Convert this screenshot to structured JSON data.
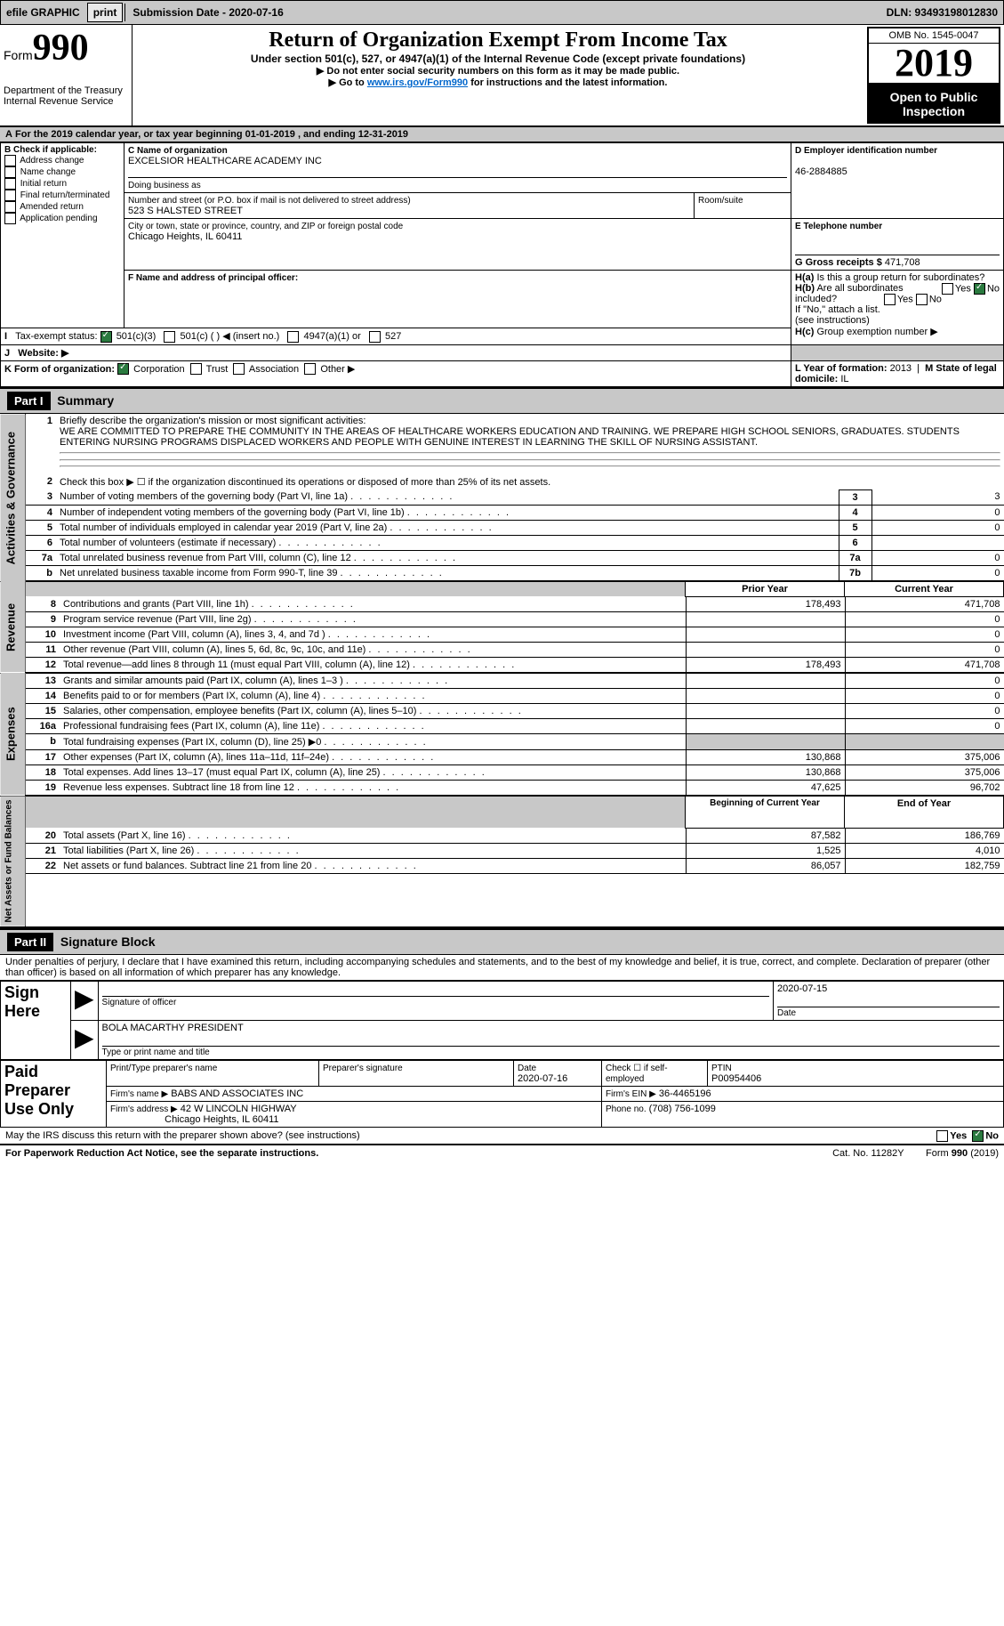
{
  "topbar": {
    "efile": "efile GRAPHIC",
    "print": "print",
    "submission": "Submission Date - 2020-07-16",
    "dln": "DLN: 93493198012830"
  },
  "header": {
    "form_prefix": "Form",
    "form_no": "990",
    "title": "Return of Organization Exempt From Income Tax",
    "subtitle": "Under section 501(c), 527, or 4947(a)(1) of the Internal Revenue Code (except private foundations)",
    "note1": "▶ Do not enter social security numbers on this form as it may be made public.",
    "note2_pre": "▶ Go to ",
    "note2_link": "www.irs.gov/Form990",
    "note2_post": " for instructions and the latest information.",
    "dept": "Department of the Treasury\nInternal Revenue Service",
    "omb": "OMB No. 1545-0047",
    "year": "2019",
    "open": "Open to Public Inspection"
  },
  "sectionA": "For the 2019 calendar year, or tax year beginning 01-01-2019   , and ending 12-31-2019",
  "boxB": {
    "title": "B Check if applicable:",
    "items": [
      "Address change",
      "Name change",
      "Initial return",
      "Final return/terminated",
      "Amended return",
      "Application pending"
    ]
  },
  "boxC": {
    "label": "C Name of organization",
    "name": "EXCELSIOR HEALTHCARE ACADEMY INC",
    "dba": "Doing business as",
    "street_label": "Number and street (or P.O. box if mail is not delivered to street address)",
    "street": "523 S HALSTED STREET",
    "room": "Room/suite",
    "city_label": "City or town, state or province, country, and ZIP or foreign postal code",
    "city": "Chicago Heights, IL  60411"
  },
  "boxD": {
    "label": "D Employer identification number",
    "ein": "46-2884885"
  },
  "boxE": {
    "label": "E Telephone number"
  },
  "boxF": {
    "label": "F  Name and address of principal officer:"
  },
  "boxG": {
    "label": "G Gross receipts $",
    "val": "471,708"
  },
  "boxH": {
    "a": "Is this a group return for subordinates?",
    "a_no": "No",
    "b": "Are all subordinates included?",
    "c": "Group exemption number ▶",
    "note": "If \"No,\" attach a list. (see instructions)"
  },
  "boxI": {
    "label": "Tax-exempt status:",
    "opts": [
      "501(c)(3)",
      "501(c) (  ) ◀ (insert no.)",
      "4947(a)(1) or",
      "527"
    ]
  },
  "boxJ": {
    "label": "Website: ▶"
  },
  "boxK": {
    "label": "K Form of organization:",
    "opts": [
      "Corporation",
      "Trust",
      "Association",
      "Other ▶"
    ]
  },
  "boxL": {
    "label": "L Year of formation:",
    "val": "2013"
  },
  "boxM": {
    "label": "M State of legal domicile:",
    "val": "IL"
  },
  "part1": {
    "hdr": "Part I",
    "title": "Summary"
  },
  "gov": {
    "label": "Activities & Governance",
    "l1": "Briefly describe the organization's mission or most significant activities:",
    "mission": "WE ARE COMMITTED TO PREPARE THE COMMUNITY IN THE AREAS OF HEALTHCARE WORKERS EDUCATION AND TRAINING. WE PREPARE HIGH SCHOOL SENIORS, GRADUATES. STUDENTS ENTERING NURSING PROGRAMS DISPLACED WORKERS AND PEOPLE WITH GENUINE INTEREST IN LEARNING THE SKILL OF NURSING ASSISTANT.",
    "l2": "Check this box ▶ ☐  if the organization discontinued its operations or disposed of more than 25% of its net assets.",
    "rows": [
      {
        "n": "3",
        "t": "Number of voting members of the governing body (Part VI, line 1a)",
        "b": "3",
        "v": "3"
      },
      {
        "n": "4",
        "t": "Number of independent voting members of the governing body (Part VI, line 1b)",
        "b": "4",
        "v": "0"
      },
      {
        "n": "5",
        "t": "Total number of individuals employed in calendar year 2019 (Part V, line 2a)",
        "b": "5",
        "v": "0"
      },
      {
        "n": "6",
        "t": "Total number of volunteers (estimate if necessary)",
        "b": "6",
        "v": ""
      },
      {
        "n": "7a",
        "t": "Total unrelated business revenue from Part VIII, column (C), line 12",
        "b": "7a",
        "v": "0"
      },
      {
        "n": "b",
        "t": "Net unrelated business taxable income from Form 990-T, line 39",
        "b": "7b",
        "v": "0"
      }
    ]
  },
  "rev": {
    "label": "Revenue",
    "hdr_prior": "Prior Year",
    "hdr_curr": "Current Year",
    "rows": [
      {
        "n": "8",
        "t": "Contributions and grants (Part VIII, line 1h)",
        "p": "178,493",
        "c": "471,708"
      },
      {
        "n": "9",
        "t": "Program service revenue (Part VIII, line 2g)",
        "p": "",
        "c": "0"
      },
      {
        "n": "10",
        "t": "Investment income (Part VIII, column (A), lines 3, 4, and 7d )",
        "p": "",
        "c": "0"
      },
      {
        "n": "11",
        "t": "Other revenue (Part VIII, column (A), lines 5, 6d, 8c, 9c, 10c, and 11e)",
        "p": "",
        "c": "0"
      },
      {
        "n": "12",
        "t": "Total revenue—add lines 8 through 11 (must equal Part VIII, column (A), line 12)",
        "p": "178,493",
        "c": "471,708"
      }
    ]
  },
  "exp": {
    "label": "Expenses",
    "rows": [
      {
        "n": "13",
        "t": "Grants and similar amounts paid (Part IX, column (A), lines 1–3 )",
        "p": "",
        "c": "0"
      },
      {
        "n": "14",
        "t": "Benefits paid to or for members (Part IX, column (A), line 4)",
        "p": "",
        "c": "0"
      },
      {
        "n": "15",
        "t": "Salaries, other compensation, employee benefits (Part IX, column (A), lines 5–10)",
        "p": "",
        "c": "0"
      },
      {
        "n": "16a",
        "t": "Professional fundraising fees (Part IX, column (A), line 11e)",
        "p": "",
        "c": "0"
      },
      {
        "n": "b",
        "t": "Total fundraising expenses (Part IX, column (D), line 25) ▶0",
        "p": "shade",
        "c": "shade"
      },
      {
        "n": "17",
        "t": "Other expenses (Part IX, column (A), lines 11a–11d, 11f–24e)",
        "p": "130,868",
        "c": "375,006"
      },
      {
        "n": "18",
        "t": "Total expenses. Add lines 13–17 (must equal Part IX, column (A), line 25)",
        "p": "130,868",
        "c": "375,006"
      },
      {
        "n": "19",
        "t": "Revenue less expenses. Subtract line 18 from line 12",
        "p": "47,625",
        "c": "96,702"
      }
    ]
  },
  "net": {
    "label": "Net Assets or Fund Balances",
    "hdr_prior": "Beginning of Current Year",
    "hdr_curr": "End of Year",
    "rows": [
      {
        "n": "20",
        "t": "Total assets (Part X, line 16)",
        "p": "87,582",
        "c": "186,769"
      },
      {
        "n": "21",
        "t": "Total liabilities (Part X, line 26)",
        "p": "1,525",
        "c": "4,010"
      },
      {
        "n": "22",
        "t": "Net assets or fund balances. Subtract line 21 from line 20",
        "p": "86,057",
        "c": "182,759"
      }
    ]
  },
  "part2": {
    "hdr": "Part II",
    "title": "Signature Block",
    "decl": "Under penalties of perjury, I declare that I have examined this return, including accompanying schedules and statements, and to the best of my knowledge and belief, it is true, correct, and complete. Declaration of preparer (other than officer) is based on all information of which preparer has any knowledge."
  },
  "sign": {
    "here": "Sign Here",
    "sig_label": "Signature of officer",
    "date": "2020-07-15",
    "date_label": "Date",
    "name": "BOLA MACARTHY  PRESIDENT",
    "name_label": "Type or print name and title"
  },
  "prep": {
    "here": "Paid Preparer Use Only",
    "c1": "Print/Type preparer's name",
    "c2": "Preparer's signature",
    "c3": "Date",
    "c3v": "2020-07-16",
    "c4": "Check ☐ if self-employed",
    "c5": "PTIN",
    "c5v": "P00954406",
    "firm_label": "Firm's name   ▶",
    "firm": "BABS AND ASSOCIATES INC",
    "ein_label": "Firm's EIN ▶",
    "ein": "36-4465196",
    "addr_label": "Firm's address ▶",
    "addr1": "42 W LINCOLN HIGHWAY",
    "addr2": "Chicago Heights, IL  60411",
    "phone_label": "Phone no.",
    "phone": "(708) 756-1099"
  },
  "footer": {
    "discuss": "May the IRS discuss this return with the preparer shown above? (see instructions)",
    "paperwork": "For Paperwork Reduction Act Notice, see the separate instructions.",
    "cat": "Cat. No. 11282Y",
    "form": "Form 990 (2019)"
  }
}
